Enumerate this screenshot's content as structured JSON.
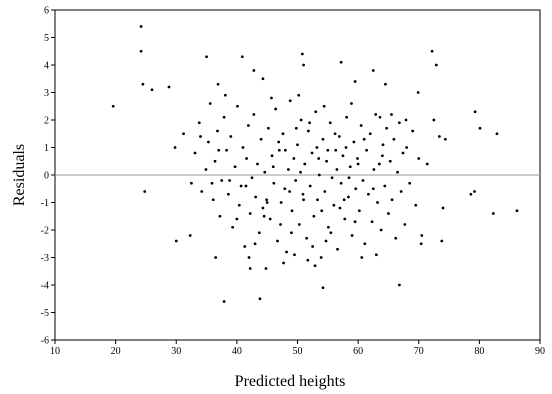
{
  "chart_data": {
    "type": "scatter",
    "xlabel": "Predicted heights",
    "ylabel": "Residuals",
    "color": "#000000",
    "hline": 0,
    "hline_color": "#999999",
    "xlim": [
      10,
      90
    ],
    "xticks": [
      10,
      20,
      30,
      40,
      50,
      60,
      70,
      80,
      90
    ],
    "ylim": [
      -6,
      6
    ],
    "yticks": [
      -6,
      -5,
      -4,
      -3,
      -2,
      -1,
      0,
      1,
      2,
      3,
      4,
      5,
      6
    ],
    "x": [
      31.2,
      32.5,
      33.1,
      33.8,
      34.2,
      34.9,
      35.3,
      35.6,
      36.1,
      36.4,
      36.8,
      37.2,
      37.5,
      37.9,
      38.3,
      38.6,
      39.0,
      39.3,
      39.7,
      40.1,
      40.4,
      40.7,
      41.0,
      41.3,
      41.6,
      41.9,
      42.2,
      42.5,
      42.8,
      43.1,
      43.4,
      43.7,
      44.0,
      44.3,
      44.6,
      44.9,
      45.2,
      45.5,
      45.8,
      46.1,
      46.4,
      46.7,
      47.0,
      47.3,
      47.6,
      47.9,
      48.2,
      48.5,
      48.8,
      49.1,
      49.4,
      49.7,
      50.0,
      50.3,
      50.6,
      50.9,
      51.2,
      51.5,
      51.8,
      52.1,
      52.4,
      52.7,
      53.0,
      53.3,
      53.6,
      53.9,
      54.2,
      54.5,
      54.8,
      55.1,
      55.4,
      55.7,
      56.0,
      56.3,
      56.6,
      56.9,
      57.2,
      57.5,
      57.8,
      58.1,
      58.4,
      58.7,
      59.0,
      59.3,
      59.6,
      59.9,
      60.2,
      60.5,
      60.8,
      61.1,
      61.4,
      61.7,
      62.0,
      62.3,
      62.6,
      62.9,
      63.2,
      63.5,
      63.8,
      64.1,
      64.4,
      64.7,
      65.0,
      65.3,
      65.6,
      65.9,
      66.2,
      66.5,
      66.8,
      67.1,
      67.4,
      67.7,
      68.0,
      68.5,
      69.0,
      69.5,
      70.0,
      70.5,
      44.5,
      45.0,
      46.0,
      47.2,
      48.0,
      49.0,
      50.5,
      51.0,
      52.0,
      52.5,
      53.5,
      54.0,
      55.0,
      55.5,
      56.5,
      57.0,
      58.0,
      58.5,
      59.5,
      60.0,
      61.0,
      62.5,
      63.0,
      64.0,
      48.7,
      49.8,
      51.7,
      53.2,
      54.7,
      56.2,
      57.7,
      43.0,
      41.5,
      40.0,
      38.8,
      37.0,
      35.9,
      34.0,
      46.9,
      45.7,
      50.2,
      54.4,
      58.9,
      63.6,
      65.5,
      67.9,
      49.5,
      52.9,
      47.7,
      60.6,
      42.0,
      44.8,
      19.6,
      24.2,
      24.2,
      24.5,
      24.8,
      26,
      28.8,
      29.8,
      30,
      32.3,
      35,
      40.9,
      42.8,
      44.3,
      38.1,
      36.9,
      36.5,
      37.9,
      43.8,
      42.2,
      50.8,
      51,
      57.2,
      59.5,
      54.2,
      66.8,
      62.5,
      64.5,
      72.2,
      72.9,
      72.5,
      73.4,
      74.4,
      79.3,
      80.1,
      82.9,
      82.3,
      86.2,
      78.6,
      79.2,
      74,
      70.4,
      73.8,
      71.4,
      69.9
    ],
    "values": [
      1.5,
      -0.3,
      0.8,
      1.9,
      -0.6,
      0.2,
      1.2,
      2.6,
      -0.9,
      0.5,
      1.6,
      -1.5,
      -0.2,
      2.1,
      0.9,
      -0.7,
      1.4,
      -1.9,
      0.3,
      2.5,
      -1.1,
      -0.4,
      1.0,
      -2.6,
      0.6,
      1.8,
      -1.4,
      -0.1,
      2.2,
      -0.8,
      0.4,
      -2.1,
      1.3,
      -1.2,
      0.1,
      -0.9,
      1.7,
      -1.6,
      0.7,
      -0.3,
      2.4,
      -2.4,
      0.9,
      -1.0,
      1.5,
      -0.5,
      -2.8,
      0.2,
      2.7,
      -1.3,
      0.6,
      -0.2,
      1.1,
      -1.8,
      2.0,
      -0.7,
      0.4,
      -2.3,
      1.6,
      -0.4,
      0.8,
      -1.5,
      2.3,
      -0.9,
      0.0,
      -3.0,
      1.3,
      -0.6,
      0.5,
      -1.9,
      1.9,
      -0.1,
      -1.1,
      0.9,
      -2.7,
      1.4,
      -0.3,
      0.7,
      -1.6,
      2.1,
      -0.8,
      0.3,
      -2.2,
      1.2,
      -0.5,
      0.6,
      -1.3,
      1.8,
      -0.2,
      -2.5,
      0.9,
      -0.7,
      1.5,
      -1.7,
      0.2,
      2.2,
      -1.0,
      0.4,
      -2.0,
      1.1,
      -0.4,
      1.7,
      -1.4,
      0.5,
      -0.9,
      1.3,
      -2.3,
      0.1,
      1.9,
      -0.6,
      0.8,
      -1.8,
      1.0,
      -0.3,
      1.6,
      -1.1,
      0.6,
      -2.2,
      -1.5,
      -1.0,
      0.3,
      -1.8,
      0.9,
      -2.1,
      0.1,
      -0.9,
      1.9,
      -2.6,
      0.6,
      -1.3,
      0.9,
      -2.1,
      0.2,
      -1.2,
      1.0,
      -0.1,
      -1.7,
      0.4,
      1.3,
      -0.5,
      -2.9,
      0.7,
      -0.6,
      1.7,
      -3.1,
      1.0,
      -2.4,
      1.5,
      -0.9,
      -2.5,
      -0.4,
      -1.6,
      -0.2,
      0.9,
      -0.3,
      1.4,
      1.2,
      2.8,
      2.9,
      2.5,
      2.6,
      2.1,
      2.2,
      2.0,
      -2.9,
      -3.3,
      -3.2,
      -3.0,
      -3.0,
      -3.4,
      2.5,
      5.4,
      4.5,
      3.3,
      -0.6,
      3.1,
      3.2,
      1.0,
      -2.4,
      -2.2,
      4.3,
      4.3,
      3.8,
      3.5,
      2.9,
      3.3,
      -3.0,
      -4.6,
      -4.5,
      -3.4,
      4.4,
      4.0,
      4.1,
      3.4,
      -4.1,
      -4.0,
      3.8,
      3.3,
      4.5,
      4.0,
      2.0,
      1.4,
      1.3,
      2.3,
      1.7,
      1.5,
      -1.4,
      -1.3,
      -0.7,
      -0.6,
      -1.2,
      -2.5,
      -2.4,
      0.4,
      3.0
    ]
  }
}
